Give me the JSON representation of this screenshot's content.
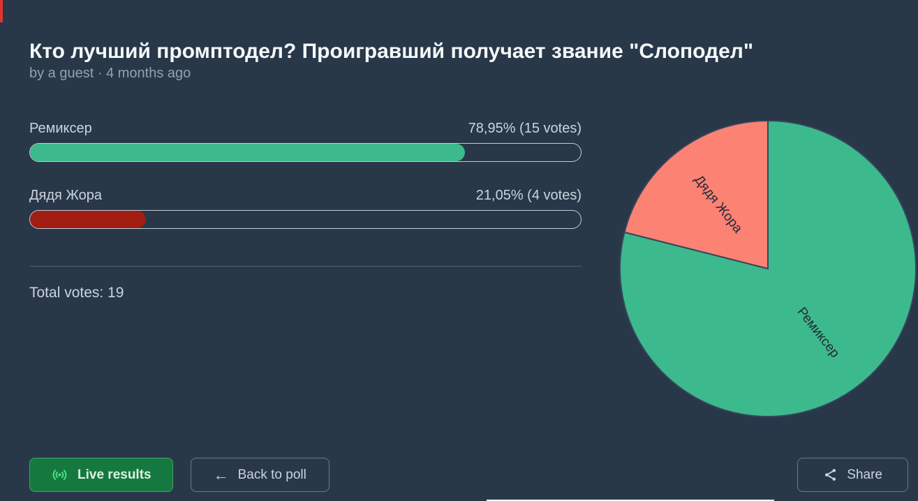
{
  "page": {
    "title": "Кто лучший промптодел? Проигравший получает звание \"Слоподел\"",
    "byline": "by a guest · 4 months ago",
    "total_votes_label": "Total votes: 19"
  },
  "chart_data": {
    "type": "pie",
    "title": "Кто лучший промптодел? Проигравший получает звание \"Слоподел\"",
    "total_votes": 19,
    "legend_position": "none",
    "options": [
      {
        "label": "Ремиксер",
        "votes": 15,
        "percent": 78.95,
        "percent_label": "78,95% (15 votes)",
        "bar_color": "#3cba8b",
        "pie_color": "#3dba8d"
      },
      {
        "label": "Дядя Жора",
        "votes": 4,
        "percent": 21.05,
        "percent_label": "21,05% (4 votes)",
        "bar_color": "#a21d11",
        "pie_color": "#fc8273"
      }
    ]
  },
  "buttons": {
    "live_results": "Live results",
    "back_to_poll": "Back to poll",
    "share": "Share"
  },
  "icons": {
    "live": "broadcast-icon",
    "back": "left-arrow-icon",
    "share": "share-nodes-icon"
  },
  "colors": {
    "background": "#283849",
    "title_text": "#f5f8fa",
    "muted_text": "#93a1b1",
    "body_text": "#ccd4de",
    "live_button_bg": "#15793f",
    "live_button_border": "#41a169",
    "live_icon": "#4ade80",
    "outline_button_border": "#6d7886",
    "pie_stroke": "#36465c",
    "pie_label_text": "#212b39",
    "bar_track_border": "#c3ccd6",
    "divider": "#55606e"
  }
}
